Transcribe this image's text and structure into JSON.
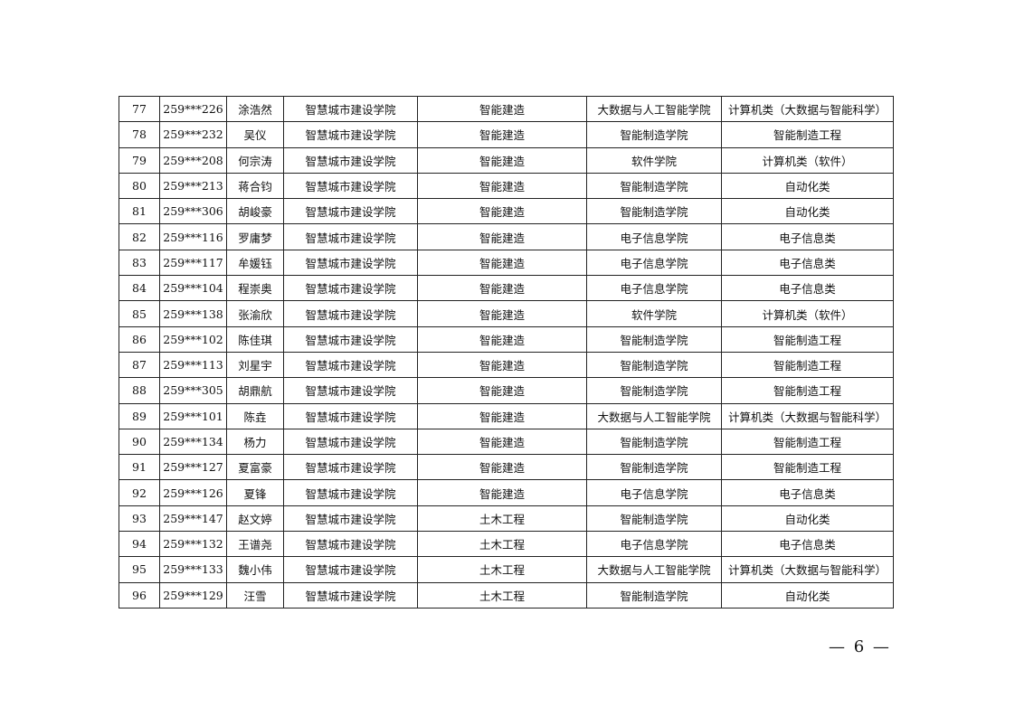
{
  "rows": [
    [
      "77",
      "259***226",
      "涂浩然",
      "智慧城市建设学院",
      "智能建造",
      "大数据与人工智能学院",
      "计算机类（大数据与智能科学）"
    ],
    [
      "78",
      "259***232",
      "吴仪",
      "智慧城市建设学院",
      "智能建造",
      "智能制造学院",
      "智能制造工程"
    ],
    [
      "79",
      "259***208",
      "何宗涛",
      "智慧城市建设学院",
      "智能建造",
      "软件学院",
      "计算机类（软件）"
    ],
    [
      "80",
      "259***213",
      "蒋合钧",
      "智慧城市建设学院",
      "智能建造",
      "智能制造学院",
      "自动化类"
    ],
    [
      "81",
      "259***306",
      "胡峻豪",
      "智慧城市建设学院",
      "智能建造",
      "智能制造学院",
      "自动化类"
    ],
    [
      "82",
      "259***116",
      "罗庸梦",
      "智慧城市建设学院",
      "智能建造",
      "电子信息学院",
      "电子信息类"
    ],
    [
      "83",
      "259***117",
      "牟媛钰",
      "智慧城市建设学院",
      "智能建造",
      "电子信息学院",
      "电子信息类"
    ],
    [
      "84",
      "259***104",
      "程崇奥",
      "智慧城市建设学院",
      "智能建造",
      "电子信息学院",
      "电子信息类"
    ],
    [
      "85",
      "259***138",
      "张渝欣",
      "智慧城市建设学院",
      "智能建造",
      "软件学院",
      "计算机类（软件）"
    ],
    [
      "86",
      "259***102",
      "陈佳琪",
      "智慧城市建设学院",
      "智能建造",
      "智能制造学院",
      "智能制造工程"
    ],
    [
      "87",
      "259***113",
      "刘星宇",
      "智慧城市建设学院",
      "智能建造",
      "智能制造学院",
      "智能制造工程"
    ],
    [
      "88",
      "259***305",
      "胡鼎航",
      "智慧城市建设学院",
      "智能建造",
      "智能制造学院",
      "智能制造工程"
    ],
    [
      "89",
      "259***101",
      "陈垚",
      "智慧城市建设学院",
      "智能建造",
      "大数据与人工智能学院",
      "计算机类（大数据与智能科学）"
    ],
    [
      "90",
      "259***134",
      "杨力",
      "智慧城市建设学院",
      "智能建造",
      "智能制造学院",
      "智能制造工程"
    ],
    [
      "91",
      "259***127",
      "夏富豪",
      "智慧城市建设学院",
      "智能建造",
      "智能制造学院",
      "智能制造工程"
    ],
    [
      "92",
      "259***126",
      "夏锋",
      "智慧城市建设学院",
      "智能建造",
      "电子信息学院",
      "电子信息类"
    ],
    [
      "93",
      "259***147",
      "赵文婷",
      "智慧城市建设学院",
      "土木工程",
      "智能制造学院",
      "自动化类"
    ],
    [
      "94",
      "259***132",
      "王谱尧",
      "智慧城市建设学院",
      "土木工程",
      "电子信息学院",
      "电子信息类"
    ],
    [
      "95",
      "259***133",
      "魏小伟",
      "智慧城市建设学院",
      "土木工程",
      "大数据与人工智能学院",
      "计算机类（大数据与智能科学）"
    ],
    [
      "96",
      "259***129",
      "汪雪",
      "智慧城市建设学院",
      "土木工程",
      "智能制造学院",
      "自动化类"
    ]
  ],
  "page_number": "— 6 —"
}
